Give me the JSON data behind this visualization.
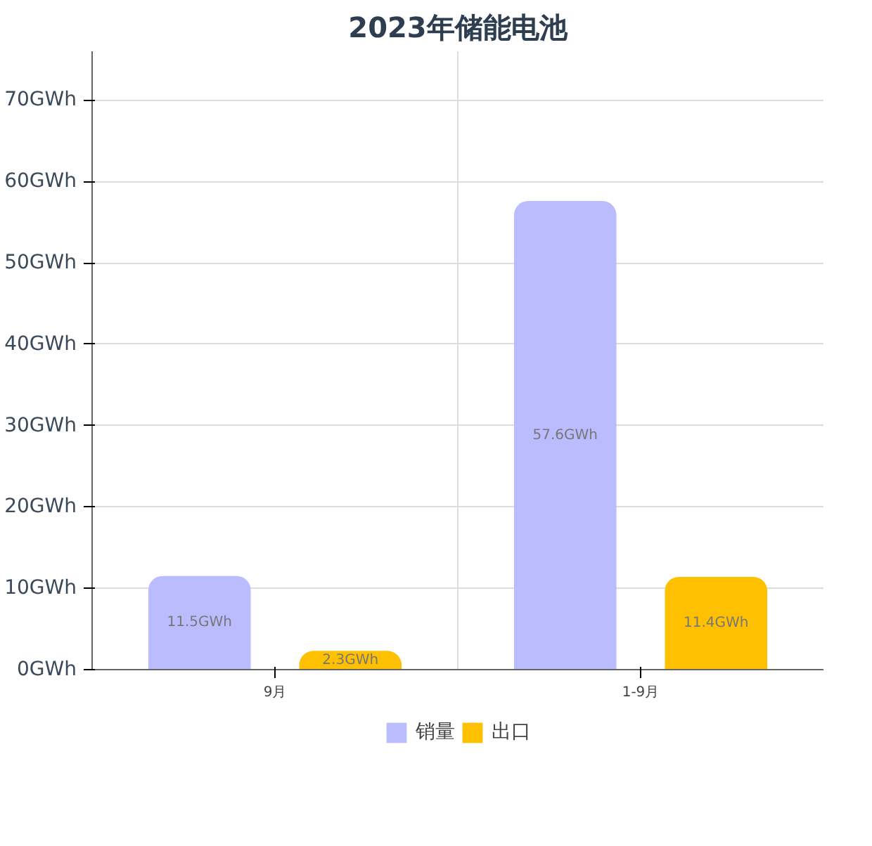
{
  "chart_data": {
    "type": "bar",
    "title": "2023年储能电池",
    "categories": [
      "9月",
      "1-9月"
    ],
    "series": [
      {
        "name": "销量",
        "color": "#babcfe",
        "values": [
          11.5,
          57.6
        ],
        "value_labels": [
          "11.5GWh",
          "57.6GWh"
        ]
      },
      {
        "name": "出口",
        "color": "#fec000",
        "values": [
          2.3,
          11.4
        ],
        "value_labels": [
          "2.3GWh",
          "11.4GWh"
        ]
      }
    ],
    "ylim": [
      0,
      76
    ],
    "yticks": [
      {
        "value": 0,
        "label": "0GWh"
      },
      {
        "value": 10,
        "label": "10GWh"
      },
      {
        "value": 20,
        "label": "20GWh"
      },
      {
        "value": 30,
        "label": "30GWh"
      },
      {
        "value": 40,
        "label": "40GWh"
      },
      {
        "value": 50,
        "label": "50GWh"
      },
      {
        "value": 60,
        "label": "60GWh"
      },
      {
        "value": 70,
        "label": "70GWh"
      }
    ],
    "grid": true,
    "legend": "bottom"
  }
}
